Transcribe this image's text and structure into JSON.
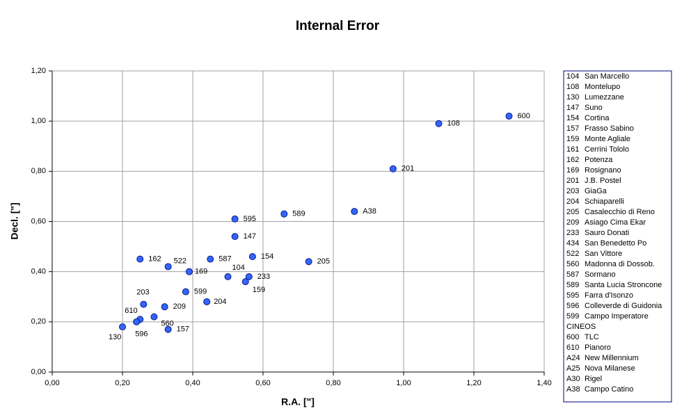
{
  "chart_data": {
    "type": "scatter",
    "title": "Internal Error",
    "x_label": "R.A. [\"]",
    "y_label": "Decl. [\"]",
    "color": "#3366ff",
    "grid": true,
    "xlim": [
      0,
      1.4
    ],
    "ylim": [
      0,
      1.2
    ],
    "xticks": [
      {
        "value": 0,
        "label": "0,00"
      },
      {
        "value": 0.2,
        "label": "0,20"
      },
      {
        "value": 0.4,
        "label": "0,40"
      },
      {
        "value": 0.6,
        "label": "0,60"
      },
      {
        "value": 0.8,
        "label": "0,80"
      },
      {
        "value": 1.0,
        "label": "1,00"
      },
      {
        "value": 1.2,
        "label": "1,20"
      },
      {
        "value": 1.4,
        "label": "1,40"
      }
    ],
    "yticks": [
      {
        "value": 0,
        "label": "0,00"
      },
      {
        "value": 0.2,
        "label": "0,20"
      },
      {
        "value": 0.4,
        "label": "0,40"
      },
      {
        "value": 0.6,
        "label": "0,60"
      },
      {
        "value": 0.8,
        "label": "0,80"
      },
      {
        "value": 1.0,
        "label": "1,00"
      },
      {
        "value": 1.2,
        "label": "1,20"
      }
    ],
    "labels": [
      "600",
      "108",
      "201",
      "A38",
      "589",
      "595",
      "147",
      "154",
      "205",
      "162",
      "522",
      "587",
      "169",
      "104",
      "233",
      "159",
      "599",
      "204",
      "203",
      "209",
      "610",
      "560",
      "596",
      "130",
      "157"
    ],
    "x": [
      1.3,
      1.1,
      0.97,
      0.86,
      0.66,
      0.52,
      0.52,
      0.57,
      0.73,
      0.25,
      0.33,
      0.45,
      0.39,
      0.5,
      0.56,
      0.55,
      0.38,
      0.44,
      0.26,
      0.32,
      0.25,
      0.29,
      0.24,
      0.2,
      0.33
    ],
    "values": [
      1.02,
      0.99,
      0.81,
      0.64,
      0.63,
      0.61,
      0.54,
      0.46,
      0.44,
      0.45,
      0.42,
      0.45,
      0.4,
      0.38,
      0.38,
      0.36,
      0.32,
      0.28,
      0.27,
      0.26,
      0.21,
      0.22,
      0.2,
      0.18,
      0.17
    ],
    "legend": [
      {
        "code": "104",
        "name": "San Marcello"
      },
      {
        "code": "108",
        "name": "Montelupo"
      },
      {
        "code": "130",
        "name": "Lumezzane"
      },
      {
        "code": "147",
        "name": "Suno"
      },
      {
        "code": "154",
        "name": "Cortina"
      },
      {
        "code": "157",
        "name": "Frasso Sabino"
      },
      {
        "code": "159",
        "name": "Monte Agliale"
      },
      {
        "code": "161",
        "name": "Cerrini Tololo"
      },
      {
        "code": "162",
        "name": "Potenza"
      },
      {
        "code": "169",
        "name": "Rosignano"
      },
      {
        "code": "201",
        "name": "J.B. Postel"
      },
      {
        "code": "203",
        "name": "GiaGa"
      },
      {
        "code": "204",
        "name": "Schiaparelli"
      },
      {
        "code": "205",
        "name": "Casalecchio di Reno"
      },
      {
        "code": "209",
        "name": "Asiago Cima Ekar"
      },
      {
        "code": "233",
        "name": "Sauro Donati"
      },
      {
        "code": "434",
        "name": "San Benedetto Po"
      },
      {
        "code": "522",
        "name": "San Vittore"
      },
      {
        "code": "560",
        "name": "Madonna di Dossob."
      },
      {
        "code": "587",
        "name": "Sormano"
      },
      {
        "code": "589",
        "name": "Santa Lucia Stroncone"
      },
      {
        "code": "595",
        "name": "Farra d'Isonzo"
      },
      {
        "code": "596",
        "name": "Colleverde di Guidonia"
      },
      {
        "code": "599",
        "name": "Campo Imperatore"
      },
      {
        "code": "CINEOS"
      },
      {
        "code": "600",
        "name": "TLC"
      },
      {
        "code": "610",
        "name": "Pianoro"
      },
      {
        "code": "A24",
        "name": "New Millennium"
      },
      {
        "code": "A25",
        "name": "Nova Milanese"
      },
      {
        "code": "A30",
        "name": "Rigel"
      },
      {
        "code": "A38",
        "name": "Campo Catino"
      }
    ]
  }
}
